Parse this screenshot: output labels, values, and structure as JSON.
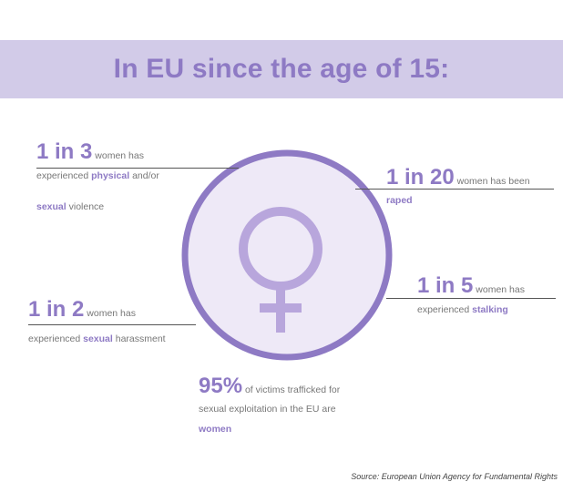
{
  "title": "In EU since the age of 15:",
  "stats": {
    "one_in_three": {
      "big": "1 in 3",
      "t1": " women has",
      "t2a": "experienced ",
      "t2b": "physical",
      "t2c": " and/or",
      "t3a": "sexual",
      "t3b": " violence"
    },
    "one_in_twenty": {
      "big": "1 in 20",
      "t1": " women has been",
      "t2": "raped"
    },
    "one_in_five": {
      "big": "1 in 5",
      "t1": " women has",
      "t2a": "experienced ",
      "t2b": "stalking"
    },
    "one_in_two": {
      "big": "1 in 2",
      "t1": " women has",
      "t2a": "experienced ",
      "t2b": "sexual",
      "t2c": " harassment"
    },
    "ninety_five": {
      "big": "95%",
      "t1": "  of victims trafficked for",
      "t2": "sexual exploitation in the EU are",
      "t3": "women"
    }
  },
  "source": "Source: European Union Agency for Fundamental Rights",
  "colors": {
    "accent": "#8e7ac4",
    "banner": "#d2cbe8",
    "circle_fill": "#eee9f7",
    "circle_ring": "#8e7ac4",
    "symbol": "#b8a6dc"
  },
  "icon": "female-symbol-icon"
}
